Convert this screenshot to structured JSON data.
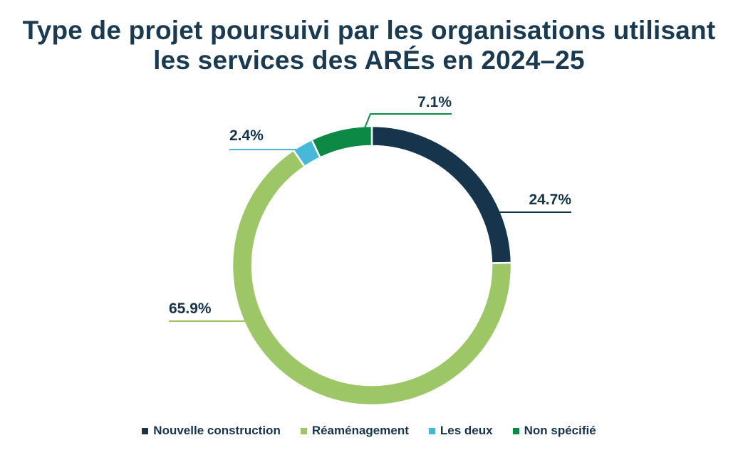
{
  "title_lines": [
    "Type de projet poursuivi par les organisations utilisant",
    "les services des ARÉs en 2024–25"
  ],
  "chart_data": {
    "type": "pie",
    "donut": true,
    "title": "Type de projet poursuivi par les organisations utilisant les services des ARÉs en 2024–25",
    "legend_position": "bottom",
    "slices": [
      {
        "label": "Nouvelle construction",
        "value": 24.7,
        "display": "24.7%",
        "color": "#16354d"
      },
      {
        "label": "Réaménagement",
        "value": 65.9,
        "display": "65.9%",
        "color": "#9dc767"
      },
      {
        "label": "Les deux",
        "value": 2.4,
        "display": "2.4%",
        "color": "#48b8d8"
      },
      {
        "label": "Non spécifié",
        "value": 7.1,
        "display": "7.1%",
        "color": "#0c8a45"
      }
    ]
  }
}
